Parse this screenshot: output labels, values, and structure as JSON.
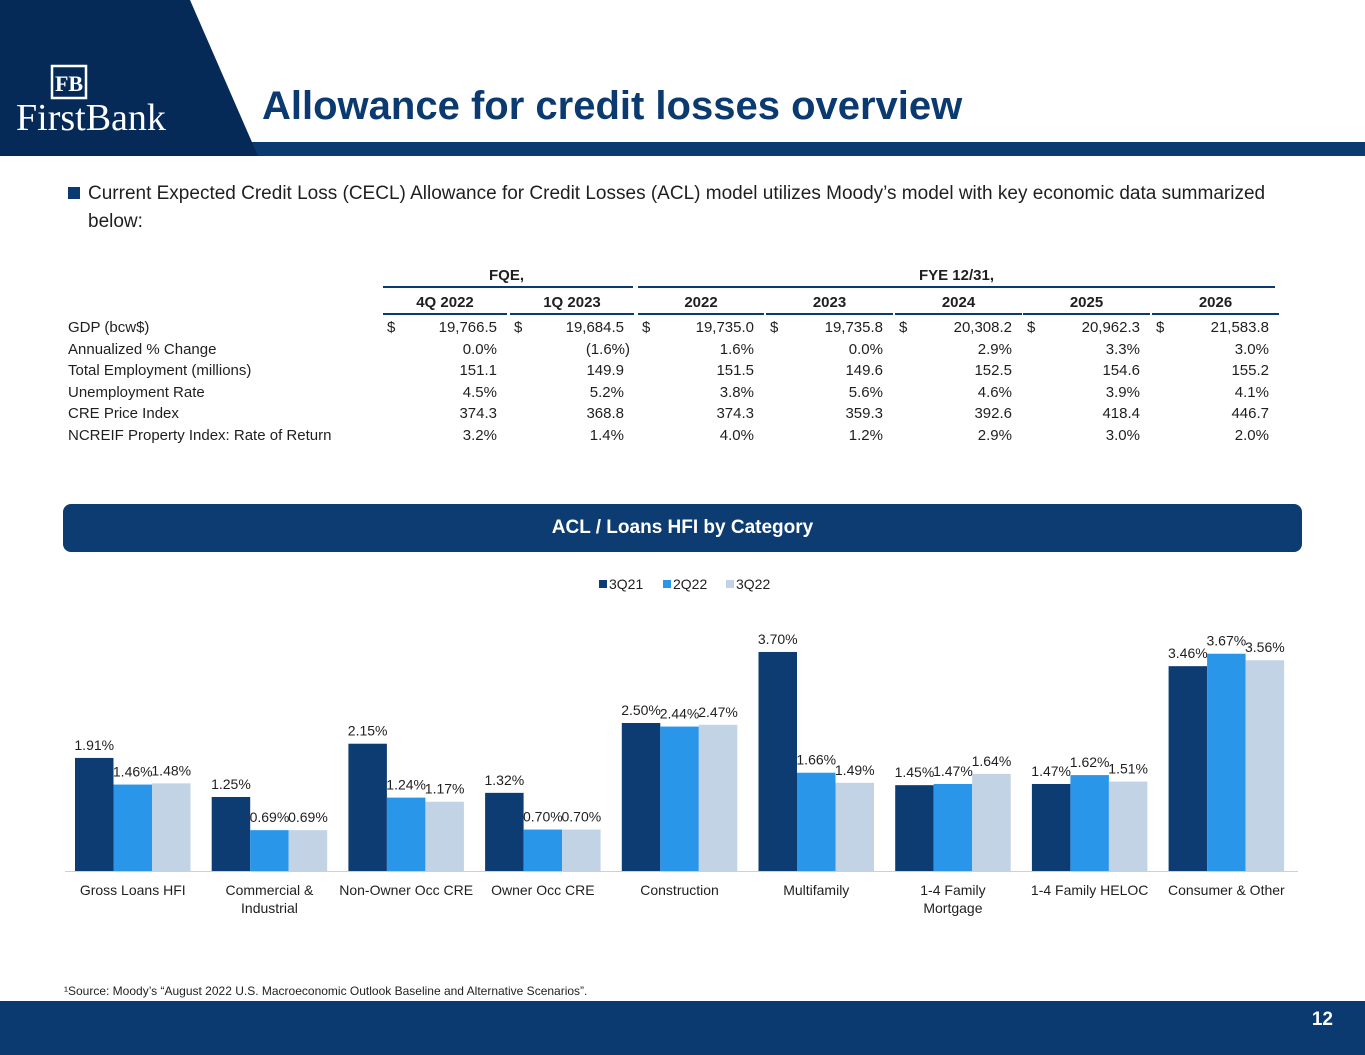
{
  "brand": {
    "logo_monogram": "FB",
    "logo_text": "FirstBank",
    "colors": {
      "navy": "#0b3a70",
      "dark_navy": "#052a58",
      "series_1": "#0d3c72",
      "series_2": "#2a96ea",
      "series_3": "#c3d3e6"
    }
  },
  "title": "Allowance for credit losses overview",
  "bullet": "Current Expected Credit Loss (CECL) Allowance for Credit Losses (ACL) model utilizes Moody’s model with key economic data summarized below:",
  "table": {
    "group_headers": [
      "FQE,",
      "FYE 12/31,"
    ],
    "columns": [
      "4Q 2022",
      "1Q 2023",
      "2022",
      "2023",
      "2024",
      "2025",
      "2026"
    ],
    "rows": [
      {
        "label": "GDP (bcw$)",
        "currency": "$",
        "values": [
          "19,766.5",
          "19,684.5",
          "19,735.0",
          "19,735.8",
          "20,308.2",
          "20,962.3",
          "21,583.8"
        ]
      },
      {
        "label": "Annualized % Change",
        "currency": "",
        "values": [
          "0.0%",
          "(1.6%)",
          "1.6%",
          "0.0%",
          "2.9%",
          "3.3%",
          "3.0%"
        ]
      },
      {
        "label": "Total Employment (millions)",
        "currency": "",
        "values": [
          "151.1",
          "149.9",
          "151.5",
          "149.6",
          "152.5",
          "154.6",
          "155.2"
        ]
      },
      {
        "label": "Unemployment Rate",
        "currency": "",
        "values": [
          "4.5%",
          "5.2%",
          "3.8%",
          "5.6%",
          "4.6%",
          "3.9%",
          "4.1%"
        ]
      },
      {
        "label": "CRE Price Index",
        "currency": "",
        "values": [
          "374.3",
          "368.8",
          "374.3",
          "359.3",
          "392.6",
          "418.4",
          "446.7"
        ]
      },
      {
        "label": "NCREIF Property Index: Rate of Return",
        "currency": "",
        "values": [
          "3.2%",
          "1.4%",
          "4.0%",
          "1.2%",
          "2.9%",
          "3.0%",
          "2.0%"
        ]
      }
    ]
  },
  "section_title": "ACL / Loans HFI by Category",
  "chart_data": {
    "type": "bar",
    "legend": "top-center",
    "categories": [
      "Gross Loans HFI",
      "Commercial & Industrial",
      "Non-Owner Occ CRE",
      "Owner Occ CRE",
      "Construction",
      "Multifamily",
      "1-4 Family Mortgage",
      "1-4 Family HELOC",
      "Consumer & Other"
    ],
    "series": [
      {
        "name": "3Q21",
        "color": "#0d3c72",
        "values": [
          1.91,
          1.25,
          2.15,
          1.32,
          2.5,
          3.7,
          1.45,
          1.47,
          3.46
        ],
        "labels": [
          "1.91%",
          "1.25%",
          "2.15%",
          "1.32%",
          "2.50%",
          "3.70%",
          "1.45%",
          "1.47%",
          "3.46%"
        ]
      },
      {
        "name": "2Q22",
        "color": "#2a96ea",
        "values": [
          1.46,
          0.69,
          1.24,
          0.7,
          2.44,
          1.66,
          1.47,
          1.62,
          3.67
        ],
        "labels": [
          "1.46%",
          "0.69%",
          "1.24%",
          "0.70%",
          "2.44%",
          "1.66%",
          "1.47%",
          "1.62%",
          "3.67%"
        ]
      },
      {
        "name": "3Q22",
        "color": "#c3d3e6",
        "values": [
          1.48,
          0.69,
          1.17,
          0.7,
          2.47,
          1.49,
          1.64,
          1.51,
          3.56
        ],
        "labels": [
          "1.48%",
          "0.69%",
          "1.17%",
          "0.70%",
          "2.47%",
          "1.49%",
          "1.64%",
          "1.51%",
          "3.56%"
        ]
      }
    ],
    "ylim": [
      0,
      4.0
    ]
  },
  "footnote": "¹Source: Moody’s “August 2022 U.S. Macroeconomic Outlook Baseline and Alternative Scenarios”.",
  "page_number": "12"
}
